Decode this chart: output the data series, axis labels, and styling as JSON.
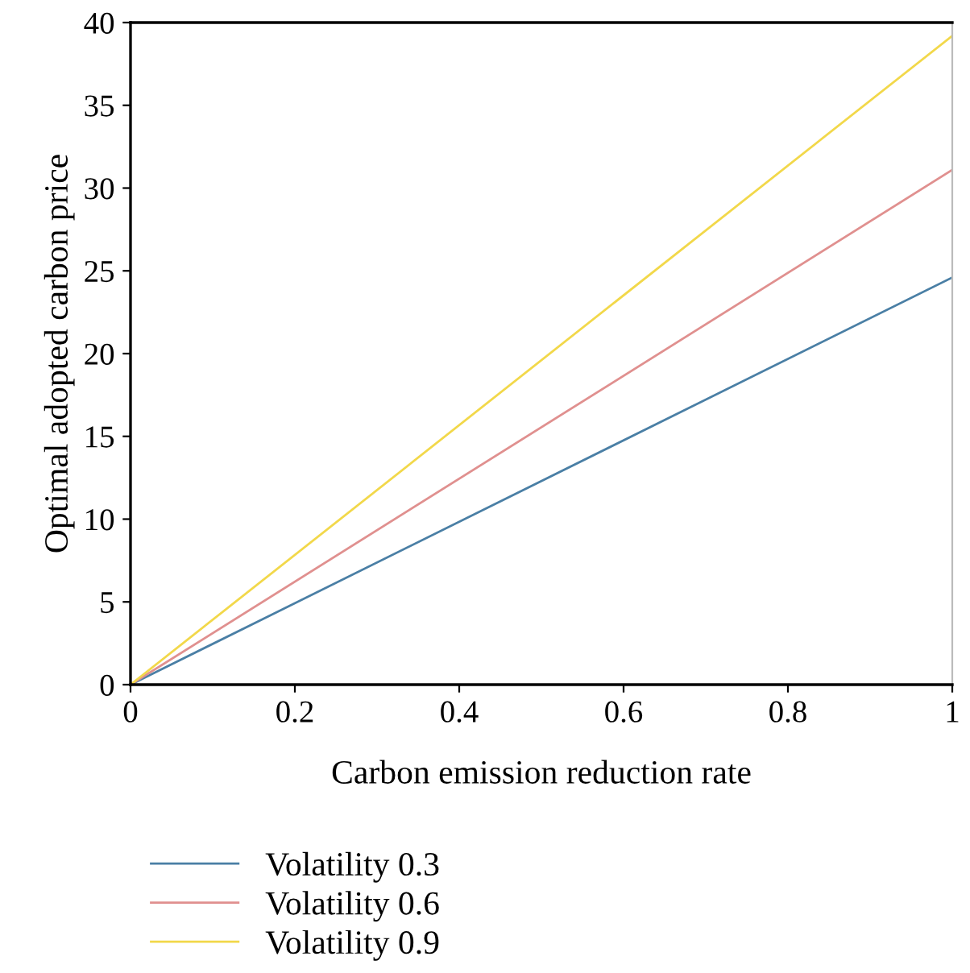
{
  "chart_data": {
    "type": "line",
    "xlabel": "Carbon emission reduction rate",
    "ylabel": "Optimal adopted carbon price",
    "x": [
      0,
      1
    ],
    "series": [
      {
        "name": "Volatility 0.3",
        "color": "#4a7fa5",
        "values": [
          0,
          24.6
        ]
      },
      {
        "name": "Volatility 0.6",
        "color": "#e0908f",
        "values": [
          0,
          31.1
        ]
      },
      {
        "name": "Volatility 0.9",
        "color": "#f2d84a",
        "values": [
          0,
          39.2
        ]
      }
    ],
    "xlim": [
      0,
      1
    ],
    "xticks": [
      0,
      0.2,
      0.4,
      0.6,
      0.8,
      1
    ],
    "ylim": [
      0,
      40
    ],
    "yticks": [
      0,
      5,
      10,
      15,
      20,
      25,
      30,
      35,
      40
    ],
    "grid": false,
    "legend": "bottom",
    "marker": "none",
    "line_style": "solid"
  }
}
